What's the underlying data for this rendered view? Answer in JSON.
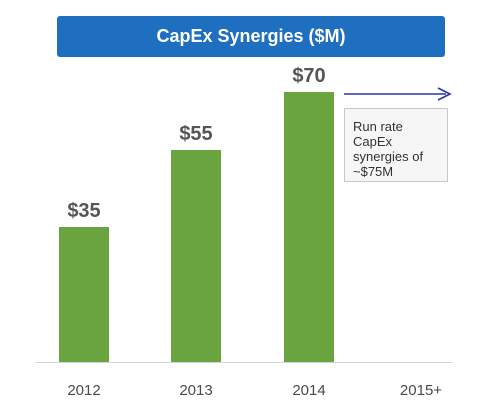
{
  "chart_data": {
    "type": "bar",
    "title": "CapEx Synergies ($M)",
    "categories": [
      "2012",
      "2013",
      "2014",
      "2015+"
    ],
    "values": [
      35,
      55,
      70,
      null
    ],
    "value_labels": [
      "$35",
      "$55",
      "$70",
      ""
    ],
    "ylim": [
      0,
      80
    ],
    "grid": false,
    "colors": {
      "banner": "#1e6fbf",
      "bar": "#6aa43e",
      "arrow": "#2a34b0"
    },
    "annotation": {
      "lines": [
        "Run rate CapEx",
        "synergies of",
        "~$75M"
      ],
      "target_category": "2015+"
    }
  }
}
